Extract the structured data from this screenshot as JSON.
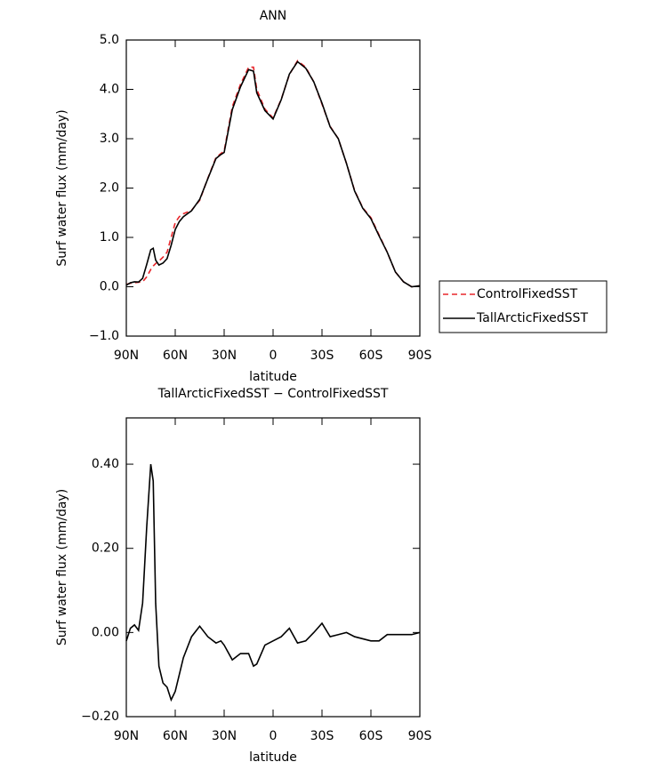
{
  "chart_data": [
    {
      "type": "line",
      "title": "ANN",
      "x_label": "latitude",
      "y_label": "Surf water flux (mm/day)",
      "x": [
        90,
        87.5,
        85,
        82.5,
        80,
        77.5,
        75,
        73.5,
        72,
        70,
        67.5,
        65,
        62.5,
        60,
        57.5,
        55,
        50,
        45,
        40,
        35,
        32,
        30,
        25,
        20,
        15,
        12,
        10,
        5,
        0,
        -5,
        -10,
        -15,
        -20,
        -25,
        -30,
        -35,
        -40,
        -45,
        -50,
        -55,
        -60,
        -65,
        -70,
        -75,
        -80,
        -85,
        -90
      ],
      "series": [
        {
          "name": "ControlFixedSST",
          "color": "#e8262b",
          "dash": true,
          "values": [
            0.05,
            0.07,
            0.08,
            0.09,
            0.1,
            0.2,
            0.35,
            0.42,
            0.47,
            0.52,
            0.6,
            0.7,
            1.0,
            1.3,
            1.42,
            1.48,
            1.55,
            1.75,
            2.2,
            2.62,
            2.7,
            2.75,
            3.65,
            4.1,
            4.45,
            4.45,
            4.0,
            3.6,
            3.42,
            3.8,
            4.3,
            4.58,
            4.45,
            4.15,
            3.7,
            3.25,
            3.0,
            2.5,
            1.95,
            1.6,
            1.4,
            1.05,
            0.7,
            0.3,
            0.1,
            0.0,
            0.02
          ]
        },
        {
          "name": "TallArcticFixedSST",
          "color": "#000000",
          "dash": false,
          "values": [
            0.03,
            0.08,
            0.1,
            0.095,
            0.17,
            0.45,
            0.75,
            0.78,
            0.54,
            0.44,
            0.48,
            0.57,
            0.84,
            1.16,
            1.32,
            1.42,
            1.54,
            1.77,
            2.19,
            2.6,
            2.68,
            2.72,
            3.59,
            4.05,
            4.4,
            4.37,
            3.93,
            3.57,
            3.4,
            3.79,
            4.31,
            4.56,
            4.43,
            4.15,
            3.72,
            3.24,
            3.0,
            2.5,
            1.94,
            1.59,
            1.38,
            1.03,
            0.7,
            0.3,
            0.1,
            0.0,
            0.02
          ]
        }
      ],
      "xlim": [
        90,
        -90
      ],
      "xticks": [
        {
          "value": 90,
          "label": "90N"
        },
        {
          "value": 60,
          "label": "60N"
        },
        {
          "value": 30,
          "label": "30N"
        },
        0,
        {
          "value": -30,
          "label": "30S"
        },
        {
          "value": -60,
          "label": "60S"
        },
        {
          "value": -90,
          "label": "90S"
        }
      ],
      "ylim": [
        -1,
        5
      ],
      "yticks": [
        {
          "value": -1,
          "label": "−1.0"
        },
        {
          "value": 0,
          "label": "0.0"
        },
        {
          "value": 1,
          "label": "1.0"
        },
        {
          "value": 2,
          "label": "2.0"
        },
        {
          "value": 3,
          "label": "3.0"
        },
        {
          "value": 4,
          "label": "4.0"
        },
        {
          "value": 5,
          "label": "5.0"
        }
      ],
      "legend": "outside-right"
    },
    {
      "type": "line",
      "title": "TallArcticFixedSST − ControlFixedSST",
      "x_label": "latitude",
      "y_label": "Surf water flux (mm/day)",
      "x": [
        90,
        87.5,
        85,
        82.5,
        80,
        77.5,
        75,
        73.5,
        72,
        70,
        67.5,
        65,
        62.5,
        60,
        57.5,
        55,
        50,
        45,
        40,
        35,
        32,
        30,
        25,
        20,
        15,
        12,
        10,
        5,
        0,
        -5,
        -10,
        -15,
        -20,
        -25,
        -30,
        -35,
        -40,
        -45,
        -50,
        -55,
        -60,
        -65,
        -70,
        -75,
        -80,
        -85,
        -90
      ],
      "series": [
        {
          "color": "#000000",
          "dash": false,
          "values": [
            -0.02,
            0.01,
            0.018,
            0.005,
            0.07,
            0.25,
            0.4,
            0.36,
            0.07,
            -0.08,
            -0.12,
            -0.13,
            -0.16,
            -0.14,
            -0.1,
            -0.06,
            -0.01,
            0.015,
            -0.01,
            -0.025,
            -0.02,
            -0.03,
            -0.065,
            -0.05,
            -0.05,
            -0.08,
            -0.075,
            -0.03,
            -0.02,
            -0.01,
            0.01,
            -0.025,
            -0.02,
            0.0,
            0.022,
            -0.01,
            -0.005,
            0.0,
            -0.01,
            -0.015,
            -0.02,
            -0.02,
            -0.005,
            -0.005,
            -0.005,
            -0.005,
            0.0
          ]
        }
      ],
      "xlim": [
        90,
        -90
      ],
      "xticks": [
        {
          "value": 90,
          "label": "90N"
        },
        {
          "value": 60,
          "label": "60N"
        },
        {
          "value": 30,
          "label": "30N"
        },
        0,
        {
          "value": -30,
          "label": "30S"
        },
        {
          "value": -60,
          "label": "60S"
        },
        {
          "value": -90,
          "label": "90S"
        }
      ],
      "ylim": [
        -0.2,
        0.51
      ],
      "yticks": [
        {
          "value": -0.2,
          "label": "−0.20"
        },
        {
          "value": 0,
          "label": "0.00"
        },
        {
          "value": 0.2,
          "label": "0.20"
        },
        {
          "value": 0.4,
          "label": "0.40"
        }
      ]
    }
  ]
}
